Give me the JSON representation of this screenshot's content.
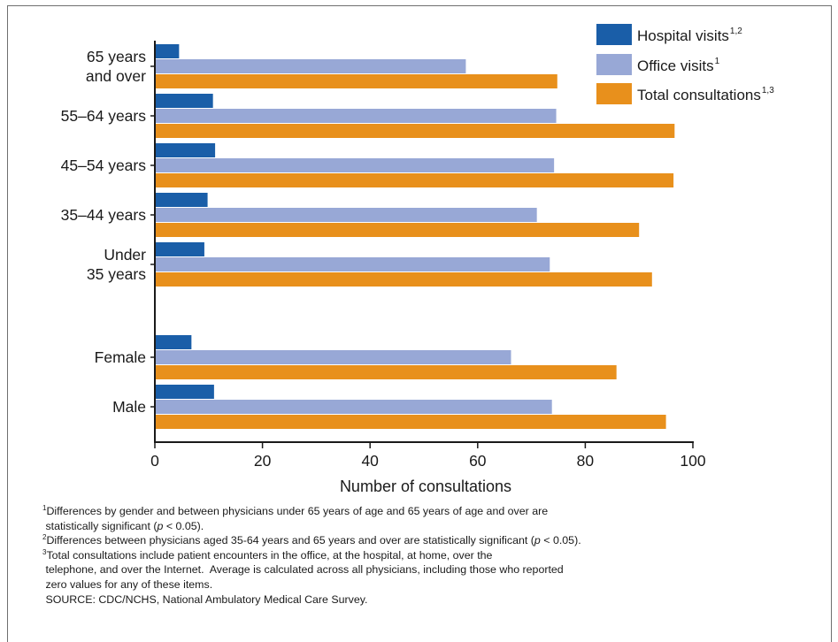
{
  "chart_data": {
    "type": "bar",
    "orientation": "horizontal",
    "categories": [
      [
        "65 years",
        "and over"
      ],
      [
        "55–64 years"
      ],
      [
        "45–54 years"
      ],
      [
        "35–44 years"
      ],
      [
        "Under",
        "35 years"
      ],
      [
        "Female"
      ],
      [
        "Male"
      ]
    ],
    "series": [
      {
        "name": "Hospital visits",
        "sup": "1,2",
        "color": "#1a5ea8",
        "values": [
          4.5,
          10.8,
          11.2,
          9.8,
          9.2,
          6.8,
          11.0
        ]
      },
      {
        "name": "Office visits",
        "sup": "1",
        "color": "#98a8d6",
        "values": [
          57.8,
          74.6,
          74.2,
          71.0,
          73.4,
          66.2,
          73.8
        ]
      },
      {
        "name": "Total consultations",
        "sup": "1,3",
        "color": "#e8901c",
        "values": [
          74.8,
          96.6,
          96.4,
          90.0,
          92.4,
          85.8,
          95.0
        ]
      }
    ],
    "xlabel": "Number of consultations",
    "ylabel": "",
    "xlim": [
      0,
      100
    ],
    "xticks": [
      0,
      20,
      40,
      60,
      80,
      100
    ],
    "legend_position": "top-right",
    "grid": false
  },
  "footnotes": [
    {
      "sup": "1",
      "text": "Differences by gender and between physicians under 65 years of age and 65 years of age and over are"
    },
    {
      "sup": "",
      "text": " statistically significant (p < 0.05)."
    },
    {
      "sup": "2",
      "text": "Differences between physicians aged 35-64 years and 65 years and over are statistically significant (p < 0.05)."
    },
    {
      "sup": "3",
      "text": "Total consultations include patient encounters in the office, at the hospital, at home, over the"
    },
    {
      "sup": "",
      "text": " telephone, and over the Internet.  Average is calculated across all physicians, including those who reported"
    },
    {
      "sup": "",
      "text": " zero values for any of these items."
    },
    {
      "sup": "",
      "text": " SOURCE: CDC/NCHS, National Ambulatory Medical Care Survey."
    }
  ]
}
